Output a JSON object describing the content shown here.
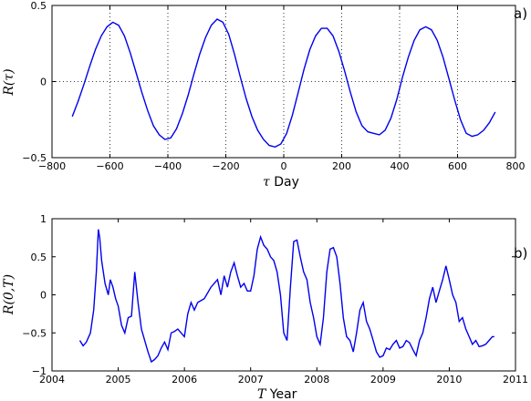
{
  "chart_data": [
    {
      "type": "line",
      "panel_label": "a)",
      "xlabel_var": "τ",
      "xlabel_text": "Day",
      "ylabel": "R(τ)",
      "xlim": [
        -800,
        800
      ],
      "ylim": [
        -0.5,
        0.5
      ],
      "xticks": [
        "−800",
        "−600",
        "−400",
        "−200",
        "0",
        "200",
        "400",
        "600",
        "800"
      ],
      "yticks": [
        "0.5",
        "0",
        "−0.5"
      ],
      "grid": "dotted at x=−600,−400,−200,0,200,400,600 and y=0",
      "line_color": "#0000ee",
      "x": [
        -730,
        -710,
        -690,
        -670,
        -650,
        -630,
        -610,
        -590,
        -570,
        -550,
        -530,
        -510,
        -490,
        -470,
        -450,
        -430,
        -410,
        -390,
        -370,
        -350,
        -330,
        -310,
        -290,
        -270,
        -250,
        -230,
        -210,
        -190,
        -170,
        -150,
        -130,
        -110,
        -90,
        -70,
        -50,
        -30,
        -10,
        10,
        30,
        50,
        70,
        90,
        110,
        130,
        150,
        170,
        190,
        210,
        230,
        250,
        270,
        290,
        310,
        330,
        350,
        370,
        390,
        410,
        430,
        450,
        470,
        490,
        510,
        530,
        550,
        570,
        590,
        610,
        630,
        650,
        670,
        690,
        710,
        730
      ],
      "values": [
        -0.23,
        -0.13,
        -0.02,
        0.1,
        0.21,
        0.3,
        0.36,
        0.39,
        0.37,
        0.3,
        0.19,
        0.06,
        -0.07,
        -0.19,
        -0.29,
        -0.35,
        -0.38,
        -0.37,
        -0.31,
        -0.21,
        -0.09,
        0.05,
        0.18,
        0.29,
        0.37,
        0.41,
        0.39,
        0.31,
        0.18,
        0.03,
        -0.11,
        -0.23,
        -0.32,
        -0.38,
        -0.42,
        -0.43,
        -0.41,
        -0.34,
        -0.22,
        -0.07,
        0.08,
        0.21,
        0.3,
        0.35,
        0.35,
        0.3,
        0.2,
        0.07,
        -0.07,
        -0.2,
        -0.29,
        -0.33,
        -0.34,
        -0.35,
        -0.32,
        -0.24,
        -0.12,
        0.03,
        0.16,
        0.27,
        0.34,
        0.36,
        0.34,
        0.27,
        0.16,
        0.02,
        -0.12,
        -0.25,
        -0.34,
        -0.36,
        -0.35,
        -0.32,
        -0.27,
        -0.2
      ]
    },
    {
      "type": "line",
      "panel_label": "b)",
      "xlabel_var": "T",
      "xlabel_text": "Year",
      "ylabel": "R(0,T)",
      "xlim": [
        2004,
        2011
      ],
      "ylim": [
        -1,
        1
      ],
      "xticks": [
        "2004",
        "2005",
        "2006",
        "2007",
        "2008",
        "2009",
        "2010",
        "2011"
      ],
      "yticks": [
        "1",
        "0.5",
        "0",
        "−0.5",
        "−1"
      ],
      "line_color": "#0000ee",
      "x": [
        2004.42,
        2004.47,
        2004.52,
        2004.58,
        2004.63,
        2004.67,
        2004.7,
        2004.72,
        2004.75,
        2004.8,
        2004.85,
        2004.88,
        2004.92,
        2004.96,
        2005.0,
        2005.05,
        2005.1,
        2005.15,
        2005.2,
        2005.25,
        2005.3,
        2005.35,
        2005.4,
        2005.45,
        2005.5,
        2005.55,
        2005.6,
        2005.65,
        2005.7,
        2005.75,
        2005.8,
        2005.85,
        2005.9,
        2005.95,
        2006.0,
        2006.05,
        2006.1,
        2006.15,
        2006.2,
        2006.3,
        2006.4,
        2006.5,
        2006.55,
        2006.6,
        2006.65,
        2006.7,
        2006.75,
        2006.8,
        2006.85,
        2006.9,
        2006.95,
        2007.0,
        2007.05,
        2007.1,
        2007.15,
        2007.2,
        2007.25,
        2007.3,
        2007.35,
        2007.4,
        2007.45,
        2007.5,
        2007.55,
        2007.6,
        2007.65,
        2007.7,
        2007.75,
        2007.8,
        2007.85,
        2007.9,
        2007.95,
        2008.0,
        2008.05,
        2008.1,
        2008.15,
        2008.2,
        2008.25,
        2008.3,
        2008.35,
        2008.4,
        2008.45,
        2008.5,
        2008.55,
        2008.6,
        2008.65,
        2008.7,
        2008.75,
        2008.8,
        2008.85,
        2008.9,
        2008.95,
        2009.0,
        2009.05,
        2009.1,
        2009.15,
        2009.2,
        2009.25,
        2009.3,
        2009.35,
        2009.4,
        2009.45,
        2009.5,
        2009.55,
        2009.6,
        2009.65,
        2009.7,
        2009.75,
        2009.8,
        2009.85,
        2009.9,
        2009.95,
        2010.0,
        2010.05,
        2010.1,
        2010.15,
        2010.2,
        2010.25,
        2010.3,
        2010.35,
        2010.4,
        2010.45,
        2010.5,
        2010.55,
        2010.6,
        2010.65,
        2010.68
      ],
      "values": [
        -0.6,
        -0.67,
        -0.62,
        -0.5,
        -0.2,
        0.3,
        0.86,
        0.75,
        0.45,
        0.15,
        0.0,
        0.2,
        0.1,
        -0.05,
        -0.15,
        -0.4,
        -0.5,
        -0.3,
        -0.28,
        0.3,
        -0.1,
        -0.45,
        -0.6,
        -0.75,
        -0.88,
        -0.85,
        -0.8,
        -0.7,
        -0.62,
        -0.72,
        -0.5,
        -0.48,
        -0.45,
        -0.5,
        -0.55,
        -0.25,
        -0.1,
        -0.2,
        -0.1,
        -0.05,
        0.1,
        0.2,
        0.0,
        0.25,
        0.1,
        0.3,
        0.42,
        0.25,
        0.1,
        0.15,
        0.05,
        0.05,
        0.25,
        0.6,
        0.76,
        0.65,
        0.6,
        0.5,
        0.45,
        0.3,
        0.0,
        -0.5,
        -0.6,
        0.1,
        0.7,
        0.72,
        0.5,
        0.3,
        0.2,
        -0.1,
        -0.3,
        -0.55,
        -0.65,
        -0.3,
        0.3,
        0.6,
        0.62,
        0.5,
        0.15,
        -0.3,
        -0.55,
        -0.6,
        -0.75,
        -0.5,
        -0.2,
        -0.1,
        -0.35,
        -0.45,
        -0.6,
        -0.75,
        -0.82,
        -0.8,
        -0.7,
        -0.72,
        -0.65,
        -0.6,
        -0.7,
        -0.68,
        -0.6,
        -0.63,
        -0.72,
        -0.8,
        -0.6,
        -0.5,
        -0.3,
        -0.05,
        0.1,
        -0.1,
        0.05,
        0.2,
        0.38,
        0.2,
        0.0,
        -0.1,
        -0.35,
        -0.3,
        -0.45,
        -0.55,
        -0.65,
        -0.6,
        -0.68,
        -0.67,
        -0.65,
        -0.6,
        -0.55,
        -0.55
      ]
    }
  ]
}
